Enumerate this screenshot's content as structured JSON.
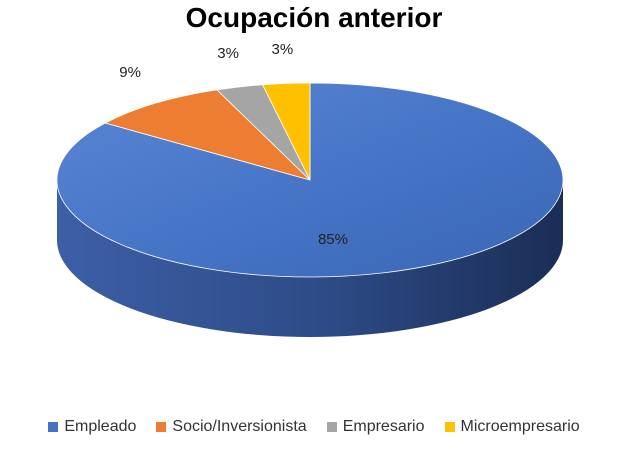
{
  "chart_data": {
    "type": "pie",
    "title": "Ocupación anterior",
    "style": "3d",
    "legend_position": "bottom",
    "slices": [
      {
        "label": "Empleado",
        "value": 85,
        "value_label": "85%",
        "color": "#4472c4"
      },
      {
        "label": "Socio/Inversionista",
        "value": 9,
        "value_label": "9%",
        "color": "#ed7d31"
      },
      {
        "label": "Empresario",
        "value": 3,
        "value_label": "3%",
        "color": "#a5a5a5"
      },
      {
        "label": "Microempresario",
        "value": 3,
        "value_label": "3%",
        "color": "#ffc000"
      }
    ]
  }
}
